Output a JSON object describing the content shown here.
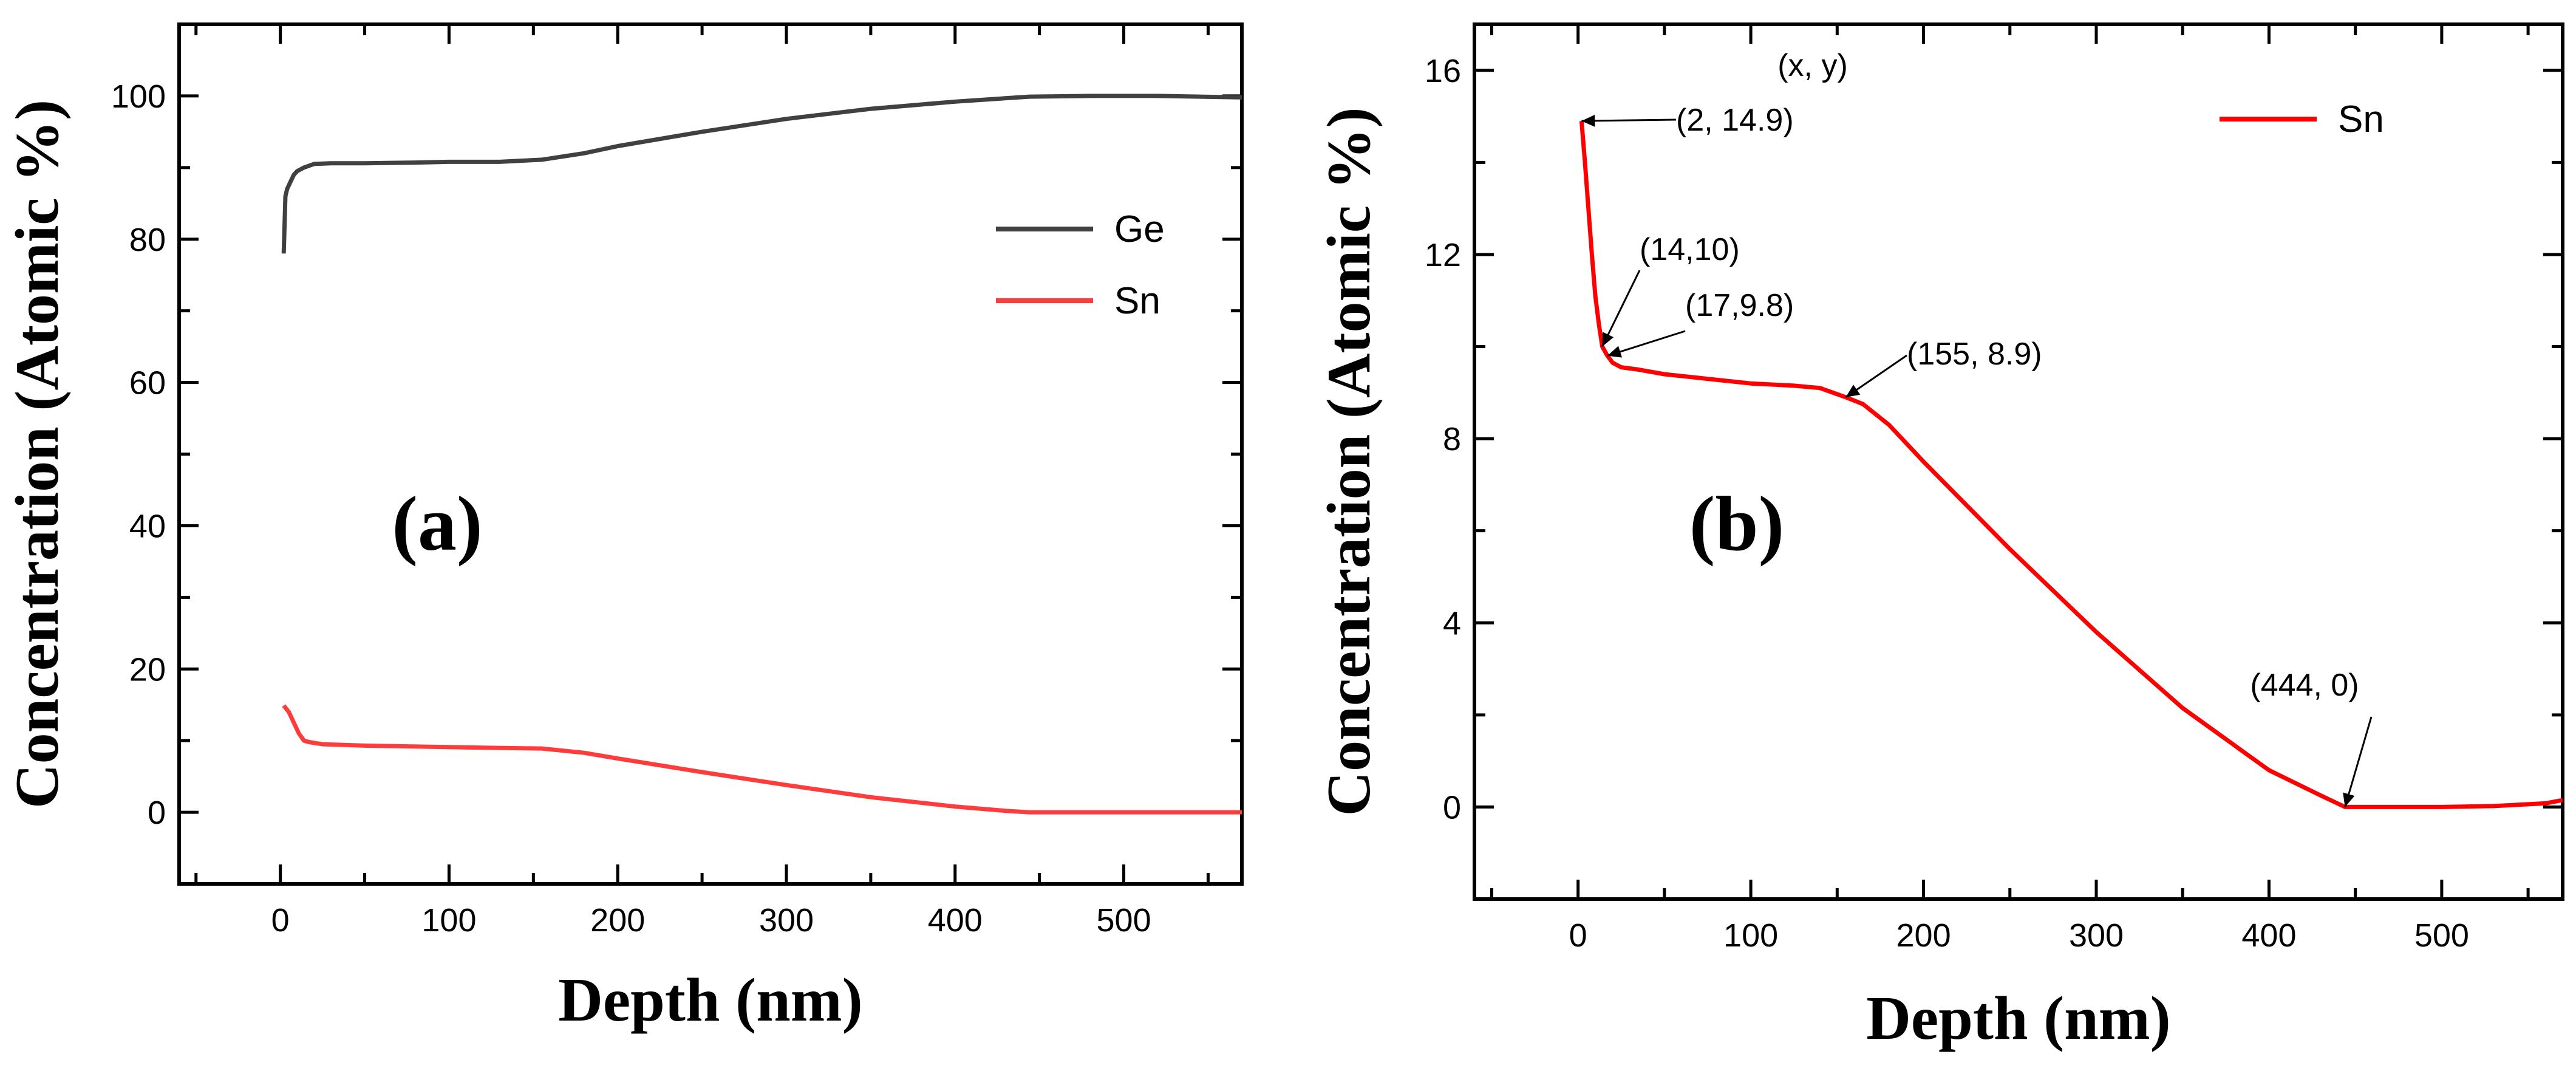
{
  "chart_data": [
    {
      "type": "line",
      "panel_label": "(a)",
      "xlabel": "Depth (nm)",
      "ylabel": "Concentration (Atomic %)",
      "xlim": [
        -60,
        570
      ],
      "ylim": [
        -10,
        110
      ],
      "xticks": [
        0,
        100,
        200,
        300,
        400,
        500
      ],
      "yticks": [
        0,
        20,
        40,
        60,
        80,
        100
      ],
      "legend_position": "center-right",
      "series": [
        {
          "name": "Ge",
          "color": "#404040",
          "x": [
            2,
            3,
            4,
            6,
            8,
            10,
            14,
            20,
            30,
            50,
            80,
            100,
            130,
            155,
            180,
            200,
            250,
            300,
            350,
            400,
            444,
            480,
            520,
            570
          ],
          "y": [
            78,
            86,
            87,
            88,
            89,
            89.5,
            90,
            90.5,
            90.6,
            90.6,
            90.7,
            90.8,
            90.8,
            91.1,
            92,
            93,
            95,
            96.8,
            98.2,
            99.2,
            99.9,
            100,
            100,
            99.8
          ]
        },
        {
          "name": "Sn",
          "color": "#ff3c3c",
          "x": [
            2,
            5,
            8,
            11,
            14,
            17,
            25,
            50,
            75,
            100,
            125,
            155,
            180,
            200,
            250,
            300,
            350,
            400,
            430,
            444,
            480,
            520,
            570
          ],
          "y": [
            14.9,
            14.0,
            12.5,
            11.0,
            10.0,
            9.8,
            9.5,
            9.3,
            9.2,
            9.1,
            9.0,
            8.9,
            8.3,
            7.5,
            5.6,
            3.8,
            2.1,
            0.8,
            0.2,
            0.0,
            0.0,
            0.0,
            0.0
          ]
        }
      ]
    },
    {
      "type": "line",
      "panel_label": "(b)",
      "xlabel": "Depth (nm)",
      "ylabel": "Concentration (Atomic %)",
      "xlim": [
        -60,
        570
      ],
      "ylim": [
        -2,
        17
      ],
      "xticks": [
        0,
        100,
        200,
        300,
        400,
        500
      ],
      "yticks": [
        0,
        4,
        8,
        12,
        16
      ],
      "legend_position": "top-right",
      "series": [
        {
          "name": "Sn",
          "color": "#ff0000",
          "x": [
            2,
            4,
            6,
            8,
            10,
            12,
            14,
            17,
            20,
            25,
            35,
            50,
            75,
            100,
            125,
            140,
            155,
            165,
            180,
            200,
            250,
            300,
            350,
            400,
            430,
            444,
            470,
            500,
            530,
            560,
            570
          ],
          "y": [
            14.9,
            14.0,
            13.0,
            12.0,
            11.1,
            10.5,
            10.0,
            9.8,
            9.65,
            9.55,
            9.5,
            9.4,
            9.3,
            9.2,
            9.15,
            9.1,
            8.9,
            8.75,
            8.3,
            7.5,
            5.6,
            3.8,
            2.15,
            0.8,
            0.25,
            0.0,
            0.0,
            0.0,
            0.02,
            0.08,
            0.15
          ]
        }
      ],
      "annotations": [
        {
          "text": "(x, y)",
          "x": null,
          "y": null
        },
        {
          "text": "(2, 14.9)",
          "x": 2,
          "y": 14.9
        },
        {
          "text": "(14,10)",
          "x": 14,
          "y": 10
        },
        {
          "text": "(17,9.8)",
          "x": 17,
          "y": 9.8
        },
        {
          "text": "(155, 8.9)",
          "x": 155,
          "y": 8.9
        },
        {
          "text": "(444, 0)",
          "x": 444,
          "y": 0
        }
      ]
    }
  ]
}
